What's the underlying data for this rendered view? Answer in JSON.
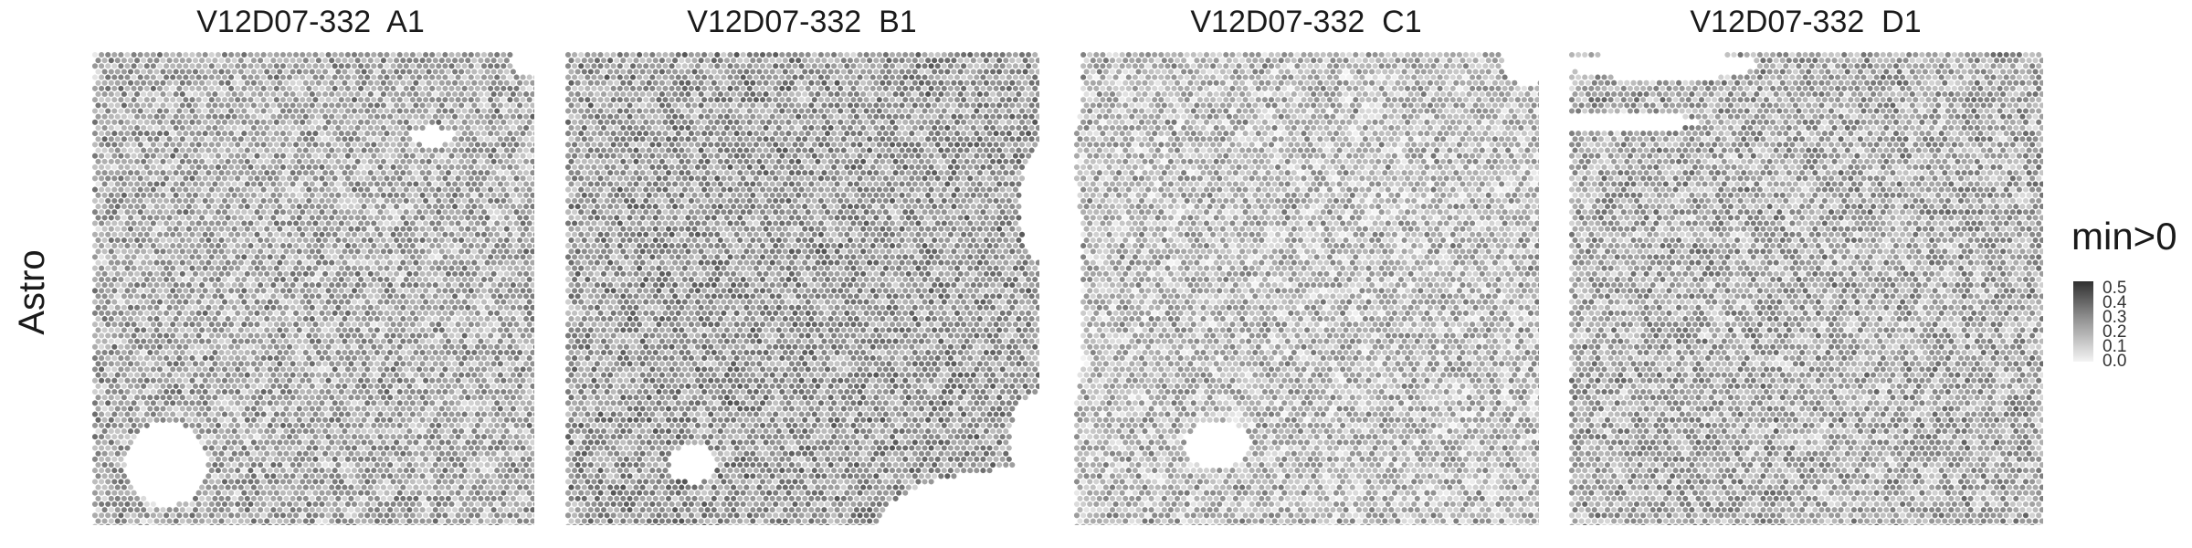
{
  "chart_data": {
    "type": "heatmap",
    "row_label": "Astro",
    "panels": [
      {
        "title": "V12D07-332  A1",
        "mean_value": 0.2,
        "holes": [
          {
            "cx": 0.17,
            "cy": 0.87,
            "rx": 0.09,
            "ry": 0.09
          },
          {
            "cx": 0.77,
            "cy": 0.18,
            "rx": 0.05,
            "ry": 0.02
          },
          {
            "cx": 0.98,
            "cy": 0.02,
            "rx": 0.03,
            "ry": 0.03
          }
        ]
      },
      {
        "title": "V12D07-332  B1",
        "mean_value": 0.24,
        "holes": [
          {
            "cx": 0.27,
            "cy": 0.87,
            "rx": 0.05,
            "ry": 0.04
          },
          {
            "cx": 1.0,
            "cy": 0.32,
            "rx": 0.04,
            "ry": 0.12
          },
          {
            "cx": 1.0,
            "cy": 0.82,
            "rx": 0.06,
            "ry": 0.1
          },
          {
            "cx": 1.0,
            "cy": 1.0,
            "rx": 0.34,
            "ry": 0.12
          }
        ]
      },
      {
        "title": "V12D07-332  C1",
        "mean_value": 0.16,
        "holes": [
          {
            "cx": 0.31,
            "cy": 0.83,
            "rx": 0.07,
            "ry": 0.05
          },
          {
            "cx": 0.98,
            "cy": 0.02,
            "rx": 0.06,
            "ry": 0.05
          },
          {
            "cx": 0.0,
            "cy": 0.06,
            "rx": 0.02,
            "ry": 0.1
          },
          {
            "cx": 0.0,
            "cy": 0.5,
            "rx": 0.02,
            "ry": 0.25
          }
        ]
      },
      {
        "title": "V12D07-332  D1",
        "mean_value": 0.2,
        "holes": [
          {
            "cx": 0.1,
            "cy": 0.15,
            "rx": 0.18,
            "ry": 0.02
          },
          {
            "cx": 0.2,
            "cy": 0.03,
            "rx": 0.2,
            "ry": 0.03
          }
        ]
      }
    ],
    "legend": {
      "title": "min>0",
      "ticks": [
        "0.5",
        "0.4",
        "0.3",
        "0.2",
        "0.1",
        "0.0"
      ],
      "range": [
        0,
        0.5
      ]
    },
    "colors": {
      "low": "#f4f4f4",
      "high": "#303030",
      "background": "#ffffff"
    },
    "grid": false,
    "legend_position": "right"
  }
}
